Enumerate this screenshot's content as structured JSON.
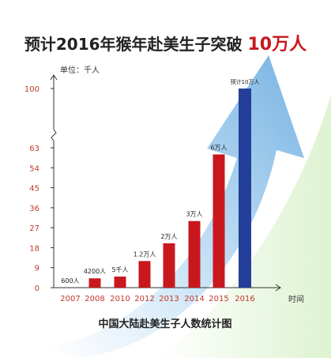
{
  "chart_data": {
    "type": "bar",
    "title_main": "预计2016年猴年赴美生子突破",
    "title_highlight": "10万人",
    "subtitle": "中国大陆赴美生子人数统计图",
    "ylabel": "单位：千人",
    "xlabel": "时间",
    "categories": [
      "2007",
      "2008",
      "2010",
      "2012",
      "2013",
      "2014",
      "2015",
      "2016"
    ],
    "values": [
      0.6,
      4.2,
      5,
      12,
      20,
      30,
      60,
      100
    ],
    "data_labels": [
      "600人",
      "4200人",
      "5千人",
      "1.2万人",
      "2万人",
      "3万人",
      "6万人",
      "预计10万人"
    ],
    "yticks": [
      "0",
      "9",
      "18",
      "27",
      "36",
      "45",
      "54",
      "63",
      "100"
    ],
    "axis_break": true,
    "grid": false,
    "colors": {
      "actual": "#c8181e",
      "forecast": "#233f99",
      "tick_text": "#c0392b"
    }
  }
}
